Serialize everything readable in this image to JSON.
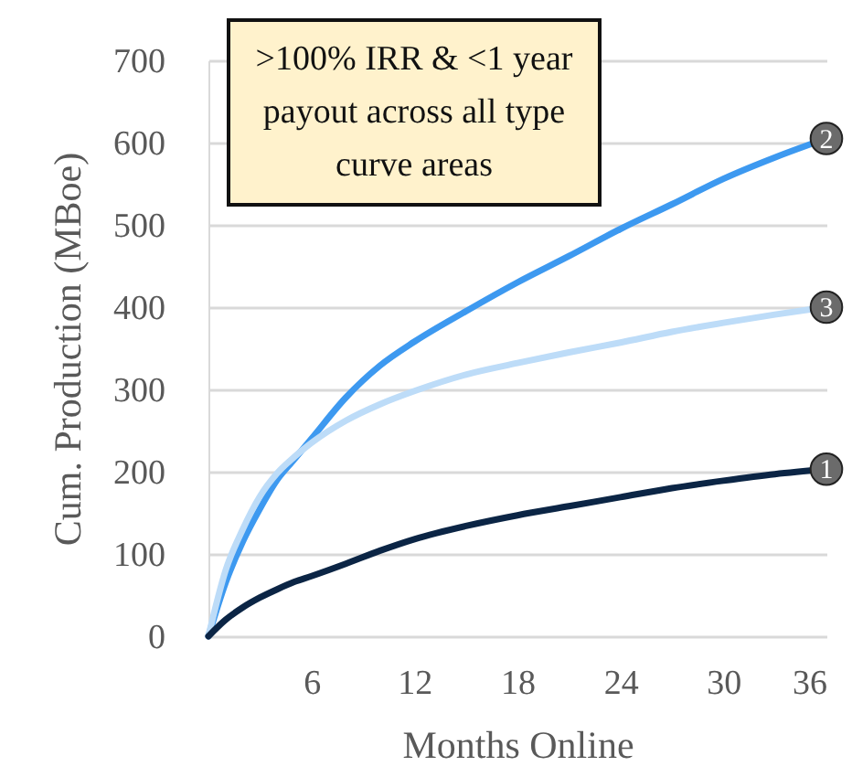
{
  "chart_data": {
    "type": "line",
    "xlabel": "Months Online",
    "ylabel": "Cum. Production (MBoe)",
    "annotations": [
      ">100% IRR & <1 year payout across all type curve areas"
    ],
    "x": [
      0,
      1,
      2,
      3,
      4,
      5,
      6,
      8,
      10,
      12,
      15,
      18,
      21,
      24,
      27,
      30,
      33,
      36
    ],
    "series": [
      {
        "name": "2",
        "color": "#3d99f0",
        "values": [
          0,
          65,
          115,
          155,
          190,
          215,
          240,
          290,
          329,
          358,
          395,
          430,
          462,
          495,
          525,
          556,
          582,
          605
        ]
      },
      {
        "name": "3",
        "color": "#bddcf8",
        "values": [
          0,
          80,
          130,
          170,
          198,
          218,
          235,
          262,
          282,
          298,
          318,
          332,
          345,
          357,
          370,
          381,
          391,
          400
        ]
      },
      {
        "name": "1",
        "color": "#0b2545",
        "values": [
          0,
          20,
          35,
          47,
          57,
          66,
          73,
          88,
          104,
          118,
          134,
          147,
          158,
          169,
          180,
          189,
          197,
          203
        ]
      }
    ],
    "xlim": [
      0,
      36
    ],
    "xticks": [
      6,
      12,
      18,
      24,
      30,
      36
    ],
    "ylim": [
      0,
      700
    ],
    "yticks": [
      0,
      100,
      200,
      300,
      400,
      500,
      600,
      700
    ],
    "grid": "y",
    "legend": false,
    "marker": "none",
    "line_style": "solid"
  }
}
